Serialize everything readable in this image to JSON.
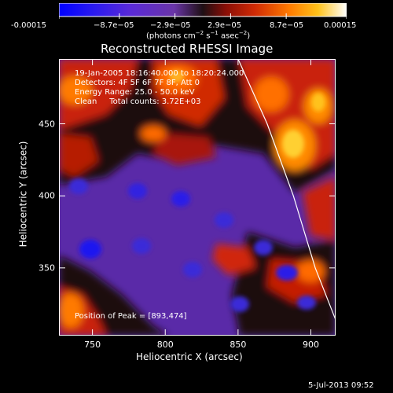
{
  "chart_data": {
    "type": "heatmap",
    "title": "Reconstructed RHESSI Image",
    "xlabel": "Heliocentric X (arcsec)",
    "ylabel": "Heliocentric Y (arcsec)",
    "xlim": [
      727,
      917
    ],
    "ylim": [
      303,
      495
    ],
    "x_ticks": [
      750,
      800,
      850,
      900
    ],
    "y_ticks": [
      350,
      400,
      450
    ],
    "colorbar": {
      "range": [
        -0.00015,
        0.00015
      ],
      "tick_values": [
        -0.00015,
        -8.7e-05,
        -2.9e-05,
        2.9e-05,
        8.7e-05,
        0.00015
      ],
      "tick_labels": [
        "-0.00015",
        "−8.7e−05",
        "−2.9e−05",
        "2.9e−05",
        "8.7e−05",
        "0.00015"
      ]
    },
    "annotations": [
      "19-Jan-2005 18:16:40.000 to 18:20:24.000",
      "Detectors: 4F 5F 6F 7F 8F, Att 0",
      "Energy Range: 25.0 - 50.0 keV",
      "Clean     Total counts: 3.72E+03"
    ],
    "peak_label": "Position of Peak = [893,474]",
    "peak_position": [
      893,
      474
    ],
    "limb_curve": [
      [
        850,
        495
      ],
      [
        870,
        450
      ],
      [
        888,
        400
      ],
      [
        903,
        350
      ],
      [
        917,
        314
      ]
    ],
    "grid": false
  },
  "colorbar_unit": {
    "prefix": "(photons cm",
    "exp1": "−2",
    "mid": " s",
    "exp2": "−1",
    "mid2": " asec",
    "exp3": "−2",
    "suffix": ")"
  },
  "footer_date": "5-Jul-2013 09:52"
}
